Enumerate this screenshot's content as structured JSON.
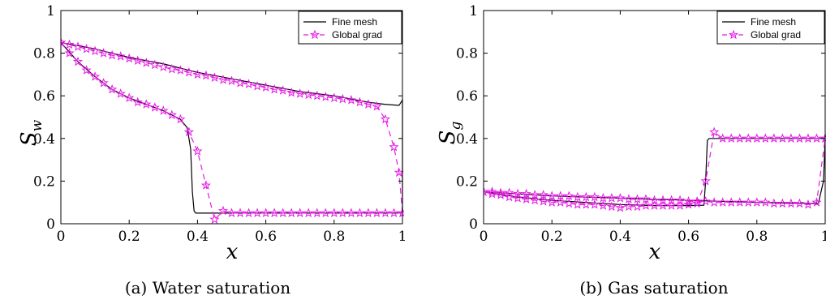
{
  "chart_data": [
    {
      "type": "line",
      "caption": "(a) Water saturation",
      "xlabel": "x",
      "ylabel": {
        "main": "S",
        "sub": "w"
      },
      "xlim": [
        0,
        1
      ],
      "ylim": [
        0,
        1
      ],
      "xticks": [
        "0",
        "0.2",
        "0.4",
        "0.6",
        "0.8",
        "1"
      ],
      "yticks": [
        "0",
        "0.2",
        "0.4",
        "0.6",
        "0.8",
        "1"
      ],
      "legend_placement": "top-right",
      "colors": {
        "fine": "#000000",
        "global": "#e619e6"
      },
      "series": [
        {
          "name": "Fine mesh",
          "style": "solid",
          "x": [
            0,
            0.05,
            0.1,
            0.15,
            0.2,
            0.25,
            0.3,
            0.35,
            0.37,
            0.38,
            0.385,
            0.39,
            0.395,
            1.0
          ],
          "y": [
            0.85,
            0.76,
            0.69,
            0.63,
            0.59,
            0.56,
            0.53,
            0.49,
            0.45,
            0.35,
            0.15,
            0.06,
            0.05,
            0.05
          ]
        },
        {
          "name": "Fine mesh",
          "style": "solid",
          "x": [
            0,
            0.1,
            0.2,
            0.3,
            0.4,
            0.5,
            0.6,
            0.7,
            0.8,
            0.9,
            0.95,
            0.99,
            1.0,
            1.0,
            1.0
          ],
          "y": [
            0.85,
            0.82,
            0.78,
            0.75,
            0.71,
            0.68,
            0.65,
            0.62,
            0.6,
            0.57,
            0.56,
            0.555,
            0.58,
            0.3,
            0.05
          ]
        },
        {
          "name": "Global grad",
          "style": "dashed",
          "x": [
            0,
            0.025,
            0.05,
            0.075,
            0.1,
            0.125,
            0.15,
            0.175,
            0.2,
            0.225,
            0.25,
            0.275,
            0.3,
            0.325,
            0.35,
            0.375,
            0.4,
            0.425,
            0.45,
            0.475,
            0.5,
            0.525,
            0.55,
            0.575,
            0.6,
            0.625,
            0.65,
            0.675,
            0.7,
            0.725,
            0.75,
            0.775,
            0.8,
            0.825,
            0.85,
            0.875,
            0.9,
            0.925,
            0.95,
            0.975,
            1.0
          ],
          "y": [
            0.85,
            0.8,
            0.76,
            0.72,
            0.69,
            0.66,
            0.63,
            0.61,
            0.59,
            0.57,
            0.56,
            0.545,
            0.53,
            0.51,
            0.49,
            0.43,
            0.34,
            0.18,
            0.02,
            0.06,
            0.05,
            0.05,
            0.05,
            0.05,
            0.05,
            0.05,
            0.05,
            0.05,
            0.05,
            0.05,
            0.05,
            0.05,
            0.05,
            0.05,
            0.05,
            0.05,
            0.05,
            0.05,
            0.05,
            0.05,
            0.05
          ]
        },
        {
          "name": "Global grad",
          "style": "dashed",
          "x": [
            0,
            0.025,
            0.05,
            0.075,
            0.1,
            0.125,
            0.15,
            0.175,
            0.2,
            0.225,
            0.25,
            0.275,
            0.3,
            0.325,
            0.35,
            0.375,
            0.4,
            0.425,
            0.45,
            0.475,
            0.5,
            0.525,
            0.55,
            0.575,
            0.6,
            0.625,
            0.65,
            0.675,
            0.7,
            0.725,
            0.75,
            0.775,
            0.8,
            0.825,
            0.85,
            0.875,
            0.9,
            0.925,
            0.95,
            0.975,
            0.99,
            1.0
          ],
          "y": [
            0.85,
            0.84,
            0.83,
            0.82,
            0.81,
            0.8,
            0.79,
            0.785,
            0.775,
            0.765,
            0.755,
            0.745,
            0.735,
            0.725,
            0.72,
            0.71,
            0.7,
            0.695,
            0.685,
            0.675,
            0.67,
            0.66,
            0.655,
            0.645,
            0.64,
            0.63,
            0.625,
            0.615,
            0.61,
            0.605,
            0.6,
            0.595,
            0.59,
            0.585,
            0.58,
            0.57,
            0.56,
            0.55,
            0.49,
            0.36,
            0.24,
            0.05
          ]
        }
      ]
    },
    {
      "type": "line",
      "caption": "(b) Gas saturation",
      "xlabel": "x",
      "ylabel": {
        "main": "S",
        "sub": "g"
      },
      "xlim": [
        0,
        1
      ],
      "ylim": [
        0,
        1
      ],
      "xticks": [
        "0",
        "0.2",
        "0.4",
        "0.6",
        "0.8",
        "1"
      ],
      "yticks": [
        "0",
        "0.2",
        "0.4",
        "0.6",
        "0.8",
        "1"
      ],
      "legend_placement": "top-right",
      "colors": {
        "fine": "#000000",
        "global": "#e619e6"
      },
      "series": [
        {
          "name": "Fine mesh",
          "style": "solid",
          "x": [
            0,
            0.1,
            0.2,
            0.3,
            0.4,
            0.5,
            0.6,
            0.645,
            0.65,
            0.655,
            0.66,
            1.0
          ],
          "y": [
            0.15,
            0.125,
            0.11,
            0.1,
            0.09,
            0.085,
            0.085,
            0.087,
            0.2,
            0.39,
            0.4,
            0.4
          ]
        },
        {
          "name": "Fine mesh",
          "style": "solid",
          "x": [
            0,
            0.1,
            0.2,
            0.3,
            0.4,
            0.5,
            0.6,
            0.7,
            0.8,
            0.9,
            0.98,
            0.995,
            1.0
          ],
          "y": [
            0.15,
            0.14,
            0.13,
            0.125,
            0.12,
            0.115,
            0.11,
            0.105,
            0.1,
            0.097,
            0.095,
            0.2,
            0.4
          ]
        },
        {
          "name": "Global grad",
          "style": "dashed",
          "x": [
            0,
            0.025,
            0.05,
            0.075,
            0.1,
            0.125,
            0.15,
            0.175,
            0.2,
            0.225,
            0.25,
            0.275,
            0.3,
            0.325,
            0.35,
            0.375,
            0.4,
            0.425,
            0.45,
            0.475,
            0.5,
            0.525,
            0.55,
            0.575,
            0.6,
            0.625,
            0.65,
            0.675,
            0.7,
            0.725,
            0.75,
            0.775,
            0.8,
            0.825,
            0.85,
            0.875,
            0.9,
            0.925,
            0.95,
            0.975,
            1.0
          ],
          "y": [
            0.15,
            0.14,
            0.135,
            0.125,
            0.12,
            0.115,
            0.11,
            0.105,
            0.1,
            0.1,
            0.095,
            0.09,
            0.09,
            0.09,
            0.085,
            0.08,
            0.075,
            0.08,
            0.08,
            0.085,
            0.085,
            0.085,
            0.085,
            0.085,
            0.09,
            0.095,
            0.2,
            0.43,
            0.4,
            0.4,
            0.4,
            0.4,
            0.4,
            0.4,
            0.4,
            0.4,
            0.4,
            0.4,
            0.4,
            0.4,
            0.4
          ]
        },
        {
          "name": "Global grad",
          "style": "dashed",
          "x": [
            0,
            0.025,
            0.05,
            0.075,
            0.1,
            0.125,
            0.15,
            0.175,
            0.2,
            0.225,
            0.25,
            0.275,
            0.3,
            0.325,
            0.35,
            0.375,
            0.4,
            0.425,
            0.45,
            0.475,
            0.5,
            0.525,
            0.55,
            0.575,
            0.6,
            0.625,
            0.65,
            0.675,
            0.7,
            0.725,
            0.75,
            0.775,
            0.8,
            0.825,
            0.85,
            0.875,
            0.9,
            0.925,
            0.95,
            0.975,
            1.0
          ],
          "y": [
            0.15,
            0.15,
            0.145,
            0.145,
            0.14,
            0.14,
            0.135,
            0.135,
            0.13,
            0.13,
            0.13,
            0.125,
            0.125,
            0.125,
            0.12,
            0.12,
            0.12,
            0.115,
            0.115,
            0.115,
            0.11,
            0.11,
            0.11,
            0.11,
            0.105,
            0.105,
            0.105,
            0.1,
            0.1,
            0.1,
            0.1,
            0.1,
            0.1,
            0.1,
            0.095,
            0.095,
            0.095,
            0.095,
            0.09,
            0.1,
            0.4
          ]
        }
      ]
    }
  ]
}
